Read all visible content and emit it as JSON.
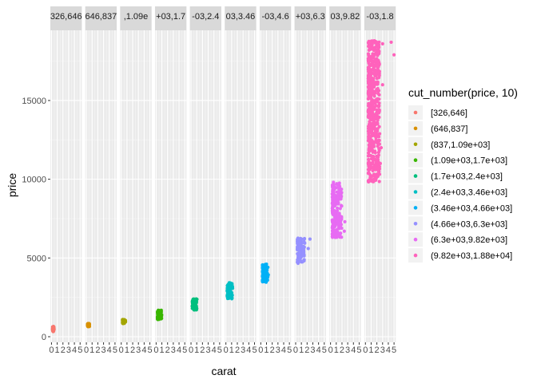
{
  "chart_data": {
    "type": "scatter",
    "facet_var": "cut_number(price, 10)",
    "xlabel": "carat",
    "ylabel": "price",
    "legend_title": "cut_number(price, 10)",
    "legend_position": "right",
    "grid": true,
    "ylim": [
      0,
      19000
    ],
    "y_ticks": [
      0,
      5000,
      10000,
      15000
    ],
    "y_tick_labels": [
      "0",
      "5000",
      "10000",
      "15000"
    ],
    "x_ticks": [
      0,
      1,
      2,
      3,
      4,
      5
    ],
    "x_tick_labels": [
      "0",
      "1",
      "2",
      "3",
      "4",
      "5"
    ],
    "xlim": [
      -0.2,
      5.3
    ],
    "panels": [
      {
        "name": "[326,646]",
        "strip_label": "326,646",
        "color": "#F8766D",
        "x_range": [
          0.2,
          0.45
        ],
        "y_range": [
          326,
          646
        ],
        "outliers": []
      },
      {
        "name": "(646,837]",
        "strip_label": "646,837",
        "color": "#D89000",
        "x_range": [
          0.23,
          0.55
        ],
        "y_range": [
          646,
          837
        ],
        "outliers": []
      },
      {
        "name": "(837,1.09e+03]",
        "strip_label": ",1.09e",
        "color": "#A3A500",
        "x_range": [
          0.23,
          0.75
        ],
        "y_range": [
          837,
          1090
        ],
        "outliers": []
      },
      {
        "name": "(1.09e+03,1.7e+03]",
        "strip_label": "+03,1.7",
        "color": "#39B600",
        "x_range": [
          0.23,
          1.0
        ],
        "y_range": [
          1090,
          1700
        ],
        "outliers": []
      },
      {
        "name": "(1.7e+03,2.4e+03]",
        "strip_label": "-03,2.4",
        "color": "#00BF7D",
        "x_range": [
          0.23,
          1.05
        ],
        "y_range": [
          1700,
          2400
        ],
        "outliers": []
      },
      {
        "name": "(2.4e+03,3.46e+03]",
        "strip_label": "03,3.46",
        "color": "#00BFC4",
        "x_range": [
          0.23,
          1.2
        ],
        "y_range": [
          2400,
          3460
        ],
        "outliers": []
      },
      {
        "name": "(3.46e+03,4.66e+03]",
        "strip_label": "-03,4.6",
        "color": "#00B0F6",
        "x_range": [
          0.3,
          1.35
        ],
        "y_range": [
          3460,
          4660
        ],
        "outliers": []
      },
      {
        "name": "(4.66e+03,6.3e+03]",
        "strip_label": "+03,6.3",
        "color": "#9590FF",
        "x_range": [
          0.3,
          1.6
        ],
        "y_range": [
          4660,
          6300
        ],
        "outliers": [
          [
            2.2,
            5600
          ],
          [
            2.5,
            6200
          ]
        ]
      },
      {
        "name": "(6.3e+03,9.82e+03]",
        "strip_label": "03,9.82",
        "color": "#E76BF3",
        "x_range": [
          0.3,
          1.95
        ],
        "y_range": [
          6300,
          9820
        ],
        "outliers": [
          [
            2.4,
            6700
          ],
          [
            2.5,
            7300
          ]
        ]
      },
      {
        "name": "(9.82e+03,1.88e+04]",
        "strip_label": "-03,1.8",
        "color": "#FF62BC",
        "x_range": [
          0.5,
          2.5
        ],
        "y_range": [
          9820,
          18800
        ],
        "outliers": [
          [
            3.0,
            18600
          ],
          [
            4.5,
            18700
          ],
          [
            5.0,
            17900
          ],
          [
            3.0,
            16000
          ],
          [
            2.75,
            12000
          ],
          [
            2.6,
            11000
          ]
        ]
      }
    ]
  }
}
